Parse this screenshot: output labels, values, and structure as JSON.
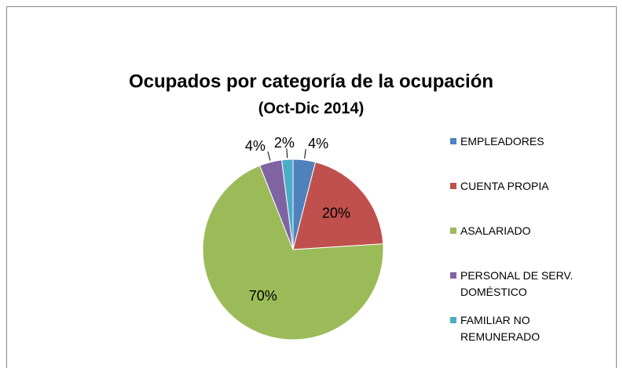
{
  "chart_data": {
    "type": "pie",
    "title": "Ocupados por categoría de la ocupación",
    "subtitle": "(Oct-Dic 2014)",
    "categories": [
      "EMPLEADORES",
      "CUENTA PROPIA",
      "ASALARIADO",
      "PERSONAL DE SERV. DOMÉSTICO",
      "FAMILIAR NO REMUNERADO"
    ],
    "values": [
      4,
      20,
      70,
      4,
      2
    ],
    "value_labels": [
      "4%",
      "20%",
      "70%",
      "4%",
      "2%"
    ],
    "colors": [
      "#4f81bd",
      "#c0504d",
      "#9bbb59",
      "#8064a2",
      "#4bacc6"
    ],
    "legend": "right"
  }
}
